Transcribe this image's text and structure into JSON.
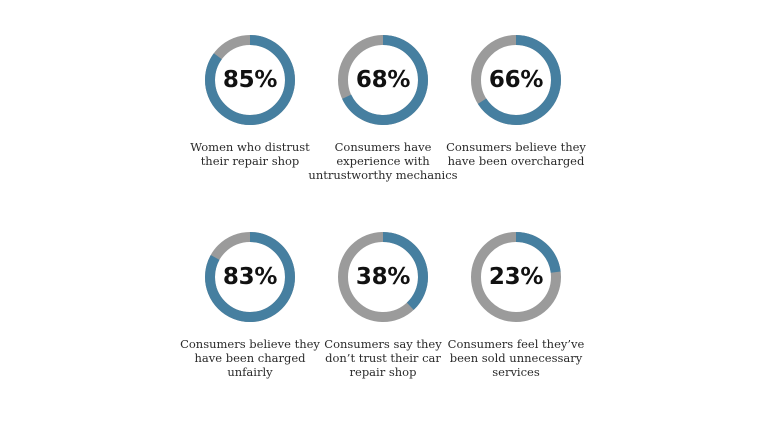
{
  "chart_data": [
    {
      "type": "pie",
      "label": "85%",
      "value": 85,
      "caption": "Women who distrust their repair shop"
    },
    {
      "type": "pie",
      "label": "68%",
      "value": 68,
      "caption": "Consumers have experience with untrustworthy mechanics"
    },
    {
      "type": "pie",
      "label": "66%",
      "value": 66,
      "caption": "Consumers believe they have been overcharged"
    },
    {
      "type": "pie",
      "label": "83%",
      "value": 83,
      "caption": "Consumers believe they have been charged unfairly"
    },
    {
      "type": "pie",
      "label": "38%",
      "value": 38,
      "caption": "Consumers say they don’t trust their car repair shop"
    },
    {
      "type": "pie",
      "label": "23%",
      "value": 23,
      "caption": "Consumers feel they’ve been sold unnecessary services"
    }
  ],
  "colors": {
    "filled": "#467fa0",
    "remainder": "#9b9b9b"
  }
}
